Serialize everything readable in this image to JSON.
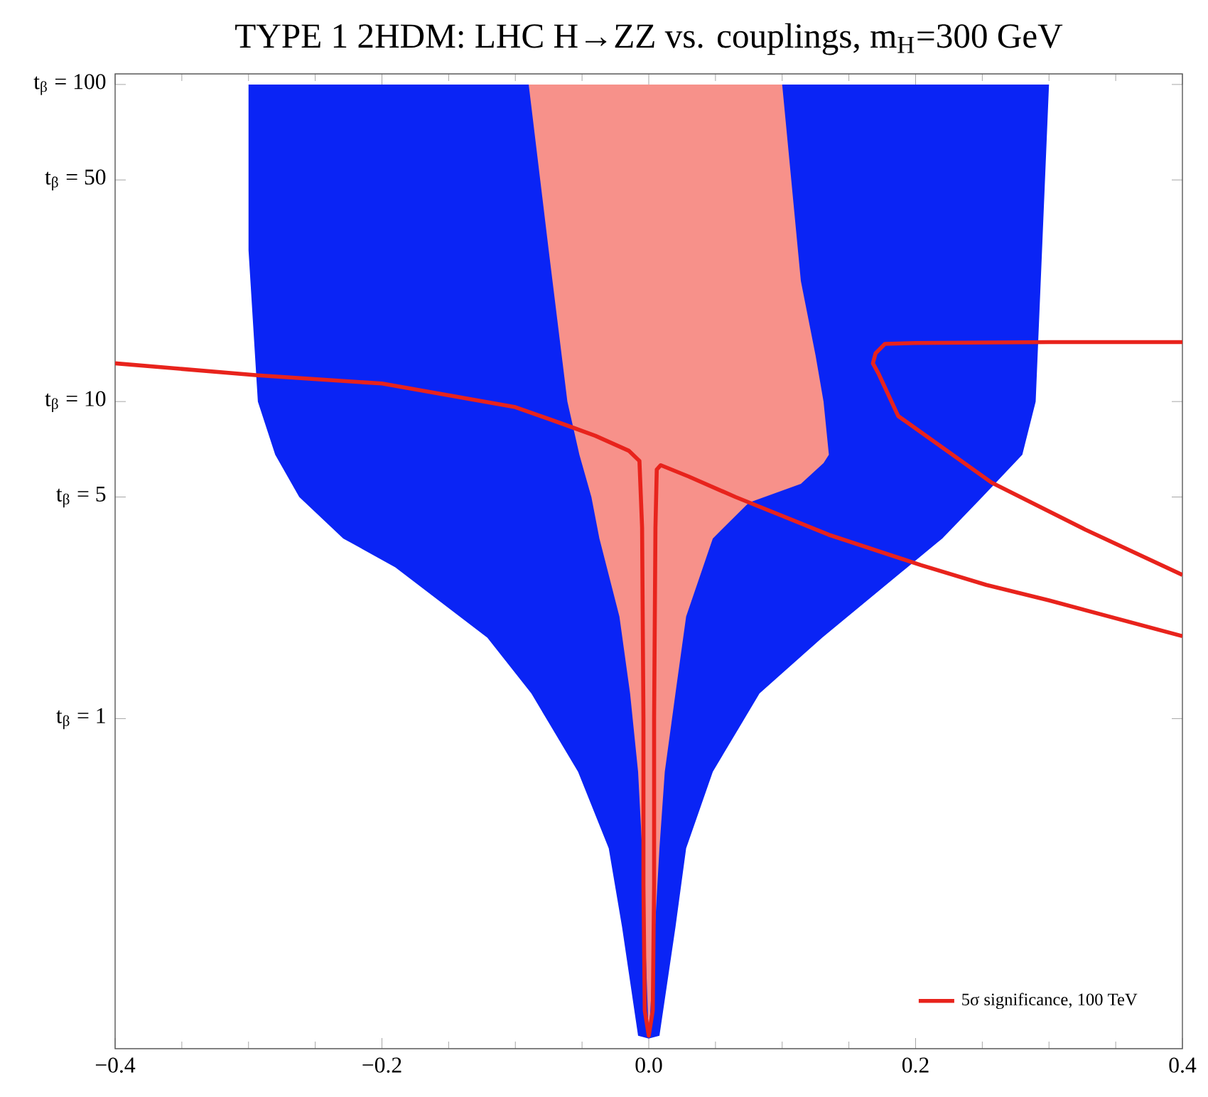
{
  "chart_data": {
    "type": "line",
    "title": "TYPE 1 2HDM: LHC H→ZZ vs. couplings, m$_{H}$=300 GeV",
    "xlim": [
      -0.4,
      0.4
    ],
    "ylim": [
      0.091,
      108
    ],
    "log": "y",
    "legend": "bottom right",
    "marker": "none",
    "xticks": [
      {
        "value": -0.4,
        "label": "−0.4"
      },
      {
        "value": -0.2,
        "label": "−0.2"
      },
      {
        "value": 0,
        "label": "0.0"
      },
      {
        "value": 0.2,
        "label": "0.2"
      },
      {
        "value": 0.4,
        "label": "0.4"
      }
    ],
    "yticks": [
      {
        "value": 1,
        "label": "t$_{β}$ = 1"
      },
      {
        "value": 5,
        "label": "t$_{β}$ = 5"
      },
      {
        "value": 10,
        "label": "t$_{β}$ = 10"
      },
      {
        "value": 50,
        "label": "t$_{β}$ = 50"
      },
      {
        "value": 100,
        "label": "t$_{β}$ = 100"
      }
    ],
    "series": [
      {
        "type": "area",
        "color": "#0a24f5",
        "x": [
          -0.3,
          0.3,
          0.29,
          0.28,
          0.25,
          0.22,
          0.13,
          0.083,
          0.048,
          0.028,
          0.02,
          0.008,
          0,
          -0.008,
          -0.02,
          -0.03,
          -0.053,
          -0.088,
          -0.121,
          -0.19,
          -0.229,
          -0.262,
          -0.28,
          -0.293,
          -0.3
        ],
        "values": [
          100,
          100,
          10,
          6.8,
          5,
          3.7,
          1.8,
          1.2,
          0.68,
          0.39,
          0.22,
          0.1,
          0.098,
          0.1,
          0.22,
          0.39,
          0.68,
          1.2,
          1.8,
          3.0,
          3.7,
          5,
          6.8,
          10,
          30
        ]
      },
      {
        "type": "area",
        "color": "#f7918a",
        "x": [
          -0.09,
          0.1,
          0.114,
          0.125,
          0.131,
          0.135,
          0.131,
          0.114,
          0.075,
          0.048,
          0.028,
          0.02,
          0.012,
          0.008,
          0,
          -0.005,
          -0.008,
          -0.014,
          -0.022,
          -0.037,
          -0.043,
          -0.052,
          -0.061,
          -0.075
        ],
        "values": [
          100,
          100,
          24,
          14,
          10,
          6.8,
          6.4,
          5.5,
          4.8,
          3.7,
          2.1,
          1.2,
          0.68,
          0.39,
          0.098,
          0.39,
          0.68,
          1.2,
          2.1,
          3.7,
          5,
          6.8,
          10,
          30
        ]
      },
      {
        "name": "5σ significance, 100 TeV",
        "color": "#e8231c",
        "x": [
          -0.4,
          -0.293,
          -0.2,
          -0.1,
          -0.061,
          -0.04,
          -0.015,
          -0.007,
          -0.005,
          -0.004,
          -0.004,
          -0.003,
          0,
          0.003,
          0.004,
          0.004,
          0.005,
          0.006,
          0.009,
          0.03,
          0.065,
          0.135,
          0.204,
          0.253,
          0.3,
          0.4
        ],
        "values": [
          13.2,
          12.1,
          11.4,
          9.6,
          8.4,
          7.8,
          7.0,
          6.5,
          4,
          1,
          0.3,
          0.12,
          0.1,
          0.12,
          0.3,
          1,
          4,
          6.1,
          6.3,
          5.8,
          5.0,
          3.8,
          3.05,
          2.64,
          2.36,
          1.82
        ]
      },
      {
        "color": "#e8231c",
        "x": [
          0.4,
          0.3,
          0.2,
          0.177,
          0.17,
          0.168,
          0.172,
          0.187,
          0.257,
          0.327,
          0.4
        ],
        "values": [
          15.4,
          15.4,
          15.3,
          15.2,
          14.2,
          13.2,
          12.3,
          9.0,
          5.55,
          3.95,
          2.84
        ]
      }
    ]
  }
}
